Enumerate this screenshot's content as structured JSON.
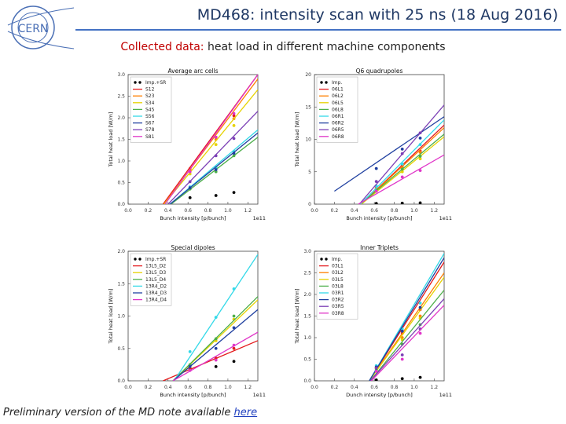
{
  "header": {
    "logo_text": "CERN",
    "title": "MD468: intensity scan with 25 ns (18 Aug 2016)"
  },
  "subtitle": {
    "prefix": "Collected data:",
    "text": "heat load in different machine components"
  },
  "footer": {
    "text": "Preliminary version of the MD note available",
    "link": "here"
  },
  "colors": {
    "title": "#1f3864",
    "accent": "#c00000",
    "rule": "#4472c4"
  },
  "chart_data": [
    {
      "type": "scatter",
      "title": "Average arc cells",
      "xlabel": "Bunch intensity [p/bunch]",
      "ylabel": "Total heat load [W/m]",
      "x_multiplier": "1e11",
      "xlim": [
        0.0,
        1.3
      ],
      "ylim": [
        0.0,
        3.0
      ],
      "xticks": [
        "0.0",
        "0.2",
        "0.4",
        "0.6",
        "0.8",
        "1.0",
        "1.2"
      ],
      "yticks": [
        "0.0",
        "0.5",
        "1.0",
        "1.5",
        "2.0",
        "2.5",
        "3.0"
      ],
      "x": [
        0.62,
        0.88,
        1.06
      ],
      "legend": "top-left",
      "series": [
        {
          "name": "Imp.+SR",
          "color": "#000000",
          "marker_only": true,
          "values": [
            0.15,
            0.2,
            0.27
          ]
        },
        {
          "name": "S12",
          "color": "#e41a1c",
          "values": [
            0.82,
            1.55,
            2.05
          ],
          "fit": [
            0.35,
            1.3,
            0.0,
            3.0
          ]
        },
        {
          "name": "S23",
          "color": "#ff7f00",
          "values": [
            0.78,
            1.5,
            1.98
          ],
          "fit": [
            0.36,
            1.3,
            0.0,
            2.9
          ]
        },
        {
          "name": "S34",
          "color": "#e6d200",
          "values": [
            0.7,
            1.38,
            1.82
          ],
          "fit": [
            0.36,
            1.3,
            0.0,
            2.65
          ]
        },
        {
          "name": "S45",
          "color": "#4daf4a",
          "values": [
            0.35,
            0.75,
            1.12
          ],
          "fit": [
            0.43,
            1.3,
            0.0,
            1.55
          ]
        },
        {
          "name": "S56",
          "color": "#33d9e8",
          "values": [
            0.4,
            0.85,
            1.22
          ],
          "fit": [
            0.42,
            1.3,
            0.0,
            1.72
          ]
        },
        {
          "name": "S67",
          "color": "#2040a0",
          "values": [
            0.38,
            0.8,
            1.18
          ],
          "fit": [
            0.42,
            1.3,
            0.0,
            1.65
          ]
        },
        {
          "name": "S78",
          "color": "#7b3fb5",
          "values": [
            0.52,
            1.12,
            1.52
          ],
          "fit": [
            0.4,
            1.3,
            0.0,
            2.15
          ]
        },
        {
          "name": "S81",
          "color": "#e036c8",
          "values": [
            0.75,
            1.55,
            2.1
          ],
          "fit": [
            0.37,
            1.3,
            0.0,
            3.0
          ]
        }
      ]
    },
    {
      "type": "scatter",
      "title": "Q6 quadrupoles",
      "xlabel": "Bunch intensity [p/bunch]",
      "ylabel": "Total heat load [W/m]",
      "x_multiplier": "1e11",
      "xlim": [
        0.0,
        1.3
      ],
      "ylim": [
        0.0,
        20.0
      ],
      "xticks": [
        "0.0",
        "0.2",
        "0.4",
        "0.6",
        "0.8",
        "1.0",
        "1.2"
      ],
      "yticks": [
        "0",
        "5",
        "10",
        "15",
        "20"
      ],
      "x": [
        0.62,
        0.88,
        1.06
      ],
      "legend": "top-left",
      "series": [
        {
          "name": "Imp.",
          "color": "#000000",
          "marker_only": true,
          "values": [
            0.1,
            0.15,
            0.2
          ]
        },
        {
          "name": "06L1",
          "color": "#e41a1c",
          "values": [
            2.5,
            6.0,
            8.2
          ],
          "fit": [
            0.47,
            1.3,
            0.0,
            12.2
          ]
        },
        {
          "name": "06L2",
          "color": "#ff7f00",
          "values": [
            2.4,
            5.7,
            8.0
          ],
          "fit": [
            0.47,
            1.3,
            0.0,
            11.8
          ]
        },
        {
          "name": "06L5",
          "color": "#e6d200",
          "values": [
            2.0,
            5.0,
            7.0
          ],
          "fit": [
            0.47,
            1.3,
            0.0,
            10.4
          ]
        },
        {
          "name": "06L8",
          "color": "#4daf4a",
          "values": [
            2.2,
            5.4,
            7.4
          ],
          "fit": [
            0.46,
            1.3,
            0.0,
            10.8
          ]
        },
        {
          "name": "06R1",
          "color": "#33d9e8",
          "values": [
            2.8,
            6.2,
            9.2
          ],
          "fit": [
            0.46,
            1.3,
            0.0,
            13.0
          ]
        },
        {
          "name": "06R2",
          "color": "#2040a0",
          "values": [
            5.5,
            8.5,
            10.2
          ],
          "fit": [
            0.2,
            1.3,
            2.0,
            13.5
          ]
        },
        {
          "name": "06R5",
          "color": "#7b3fb5",
          "values": [
            3.5,
            7.8,
            11.0
          ],
          "fit": [
            0.45,
            1.3,
            0.0,
            15.3
          ]
        },
        {
          "name": "06R8",
          "color": "#e036c8",
          "values": [
            2.0,
            4.2,
            5.2
          ],
          "fit": [
            0.44,
            1.3,
            0.0,
            7.6
          ]
        }
      ]
    },
    {
      "type": "scatter",
      "title": "Special dipoles",
      "xlabel": "Bunch intensity [p/bunch]",
      "ylabel": "Total heat load [W/m]",
      "x_multiplier": "1e11",
      "xlim": [
        0.0,
        1.3
      ],
      "ylim": [
        0.0,
        2.0
      ],
      "xticks": [
        "0.0",
        "0.2",
        "0.4",
        "0.6",
        "0.8",
        "1.0",
        "1.2"
      ],
      "yticks": [
        "0.0",
        "0.5",
        "1.0",
        "1.5",
        "2.0"
      ],
      "x": [
        0.62,
        0.88,
        1.06
      ],
      "legend": "top-left",
      "series": [
        {
          "name": "Imp.+SR",
          "color": "#000000",
          "marker_only": true,
          "values": [
            0.18,
            0.22,
            0.3
          ]
        },
        {
          "name": "13L5_D2",
          "color": "#e41a1c",
          "values": [
            0.2,
            0.35,
            0.5
          ],
          "fit": [
            0.35,
            1.3,
            0.0,
            0.62
          ]
        },
        {
          "name": "13L5_D3",
          "color": "#e6d200",
          "values": [
            0.22,
            0.62,
            0.95
          ],
          "fit": [
            0.45,
            1.3,
            0.0,
            1.25
          ]
        },
        {
          "name": "13L5_D4",
          "color": "#4daf4a",
          "values": [
            0.25,
            0.65,
            1.0
          ],
          "fit": [
            0.45,
            1.3,
            0.0,
            1.3
          ]
        },
        {
          "name": "13R4_D2",
          "color": "#33d9e8",
          "values": [
            0.45,
            0.98,
            1.42
          ],
          "fit": [
            0.46,
            1.3,
            0.0,
            1.95
          ]
        },
        {
          "name": "13R4_D3",
          "color": "#2040a0",
          "values": [
            0.22,
            0.5,
            0.82
          ],
          "fit": [
            0.45,
            1.3,
            0.0,
            1.1
          ]
        },
        {
          "name": "13R4_D4",
          "color": "#e036c8",
          "values": [
            0.16,
            0.32,
            0.55
          ],
          "fit": [
            0.45,
            1.3,
            0.0,
            0.75
          ]
        }
      ]
    },
    {
      "type": "scatter",
      "title": "Inner Triplets",
      "xlabel": "Dunch intensity [p/bunch]",
      "ylabel": "Total heat load [W/m]",
      "x_multiplier": "1e11",
      "xlim": [
        0.0,
        1.3
      ],
      "ylim": [
        0.0,
        3.0
      ],
      "xticks": [
        "0.0",
        "0.2",
        "0.4",
        "0.6",
        "0.8",
        "1.0",
        "1.2"
      ],
      "yticks": [
        "0.0",
        "0.5",
        "1.0",
        "1.5",
        "2.0",
        "2.5",
        "3.0"
      ],
      "x": [
        0.62,
        0.88,
        1.06
      ],
      "legend": "top-left",
      "series": [
        {
          "name": "Imp.",
          "color": "#000000",
          "marker_only": true,
          "values": [
            0.02,
            0.05,
            0.08
          ]
        },
        {
          "name": "03L1",
          "color": "#e41a1c",
          "values": [
            0.3,
            1.1,
            1.65
          ],
          "fit": [
            0.55,
            1.3,
            0.0,
            2.75
          ]
        },
        {
          "name": "03L2",
          "color": "#ff7f00",
          "values": [
            0.28,
            1.0,
            1.5
          ],
          "fit": [
            0.55,
            1.3,
            0.0,
            2.5
          ]
        },
        {
          "name": "03L5",
          "color": "#e6d200",
          "values": [
            0.3,
            0.95,
            1.45
          ],
          "fit": [
            0.55,
            1.3,
            0.0,
            2.4
          ]
        },
        {
          "name": "03L8",
          "color": "#4daf4a",
          "values": [
            0.25,
            0.85,
            1.3
          ],
          "fit": [
            0.56,
            1.3,
            0.0,
            2.1
          ]
        },
        {
          "name": "03R1",
          "color": "#33d9e8",
          "values": [
            0.35,
            1.2,
            1.8
          ],
          "fit": [
            0.55,
            1.3,
            0.0,
            2.95
          ]
        },
        {
          "name": "03R2",
          "color": "#2040a0",
          "values": [
            0.32,
            1.15,
            1.7
          ],
          "fit": [
            0.55,
            1.3,
            0.0,
            2.85
          ]
        },
        {
          "name": "03R5",
          "color": "#7b3fb5",
          "values": [
            0.3,
            0.6,
            1.2
          ],
          "fit": [
            0.56,
            1.3,
            0.0,
            1.9
          ]
        },
        {
          "name": "03R8",
          "color": "#e036c8",
          "values": [
            0.22,
            0.5,
            1.1
          ],
          "fit": [
            0.57,
            1.3,
            0.0,
            1.75
          ]
        }
      ]
    }
  ]
}
